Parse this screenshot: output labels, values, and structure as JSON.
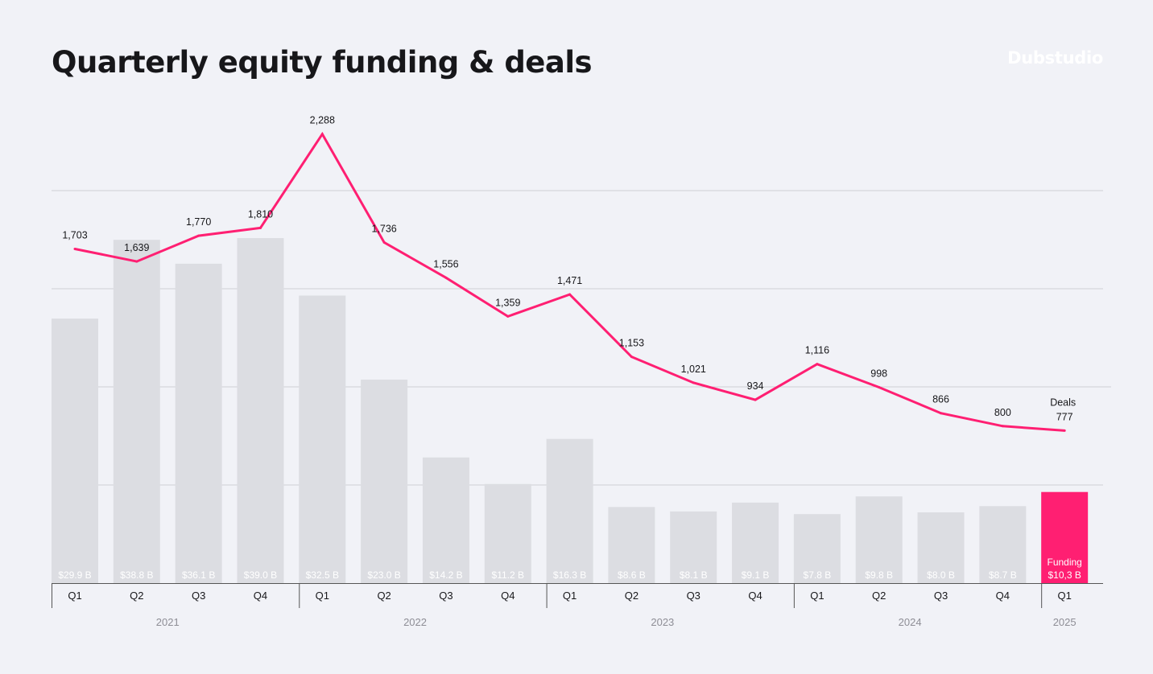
{
  "title": "Quarterly equity funding & deals",
  "brand": "Dubstudio",
  "colors": {
    "bar": "#dcdde2",
    "highlight": "#ff1f72",
    "line": "#ff1f72",
    "grid": "#cfd0d5",
    "axis": "#555555"
  },
  "chart_data": {
    "type": "bar",
    "title": "Quarterly equity funding & deals",
    "categories": [
      "Q1",
      "Q2",
      "Q3",
      "Q4",
      "Q1",
      "Q2",
      "Q3",
      "Q4",
      "Q1",
      "Q2",
      "Q3",
      "Q4",
      "Q1",
      "Q2",
      "Q3",
      "Q4",
      "Q1"
    ],
    "years": [
      {
        "label": "2021",
        "span": 4
      },
      {
        "label": "2022",
        "span": 4
      },
      {
        "label": "2023",
        "span": 4
      },
      {
        "label": "2024",
        "span": 4
      },
      {
        "label": "2025",
        "span": 1
      }
    ],
    "series": [
      {
        "name": "Funding",
        "type": "bar",
        "unit": "$B",
        "values": [
          29.9,
          38.8,
          36.1,
          39.0,
          32.5,
          23.0,
          14.2,
          11.2,
          16.3,
          8.6,
          8.1,
          9.1,
          7.8,
          9.8,
          8.0,
          8.7,
          10.3
        ],
        "labels": [
          "$29.9 B",
          "$38.8 B",
          "$36.1 B",
          "$39.0 B",
          "$32.5 B",
          "$23.0 B",
          "$14.2 B",
          "$11.2 B",
          "$16.3 B",
          "$8.6 B",
          "$8.1 B",
          "$9.1 B",
          "$7.8 B",
          "$9.8 B",
          "$8.0 B",
          "$8.7 B",
          "$10,3 B"
        ],
        "highlight_index": 16
      },
      {
        "name": "Deals",
        "type": "line",
        "values": [
          1703,
          1639,
          1770,
          1810,
          2288,
          1736,
          1556,
          1359,
          1471,
          1153,
          1021,
          934,
          1116,
          998,
          866,
          800,
          777
        ],
        "labels": [
          "1,703",
          "1,639",
          "1,770",
          "1,810",
          "2,288",
          "1,736",
          "1,556",
          "1,359",
          "1,471",
          "1,153",
          "1,021",
          "934",
          "1,116",
          "998",
          "866",
          "800",
          "777"
        ]
      }
    ],
    "funding_ylim": [
      0,
      50
    ],
    "deals_ylim": [
      0,
      2500
    ],
    "gridlines": true,
    "legend": "inline-right"
  }
}
